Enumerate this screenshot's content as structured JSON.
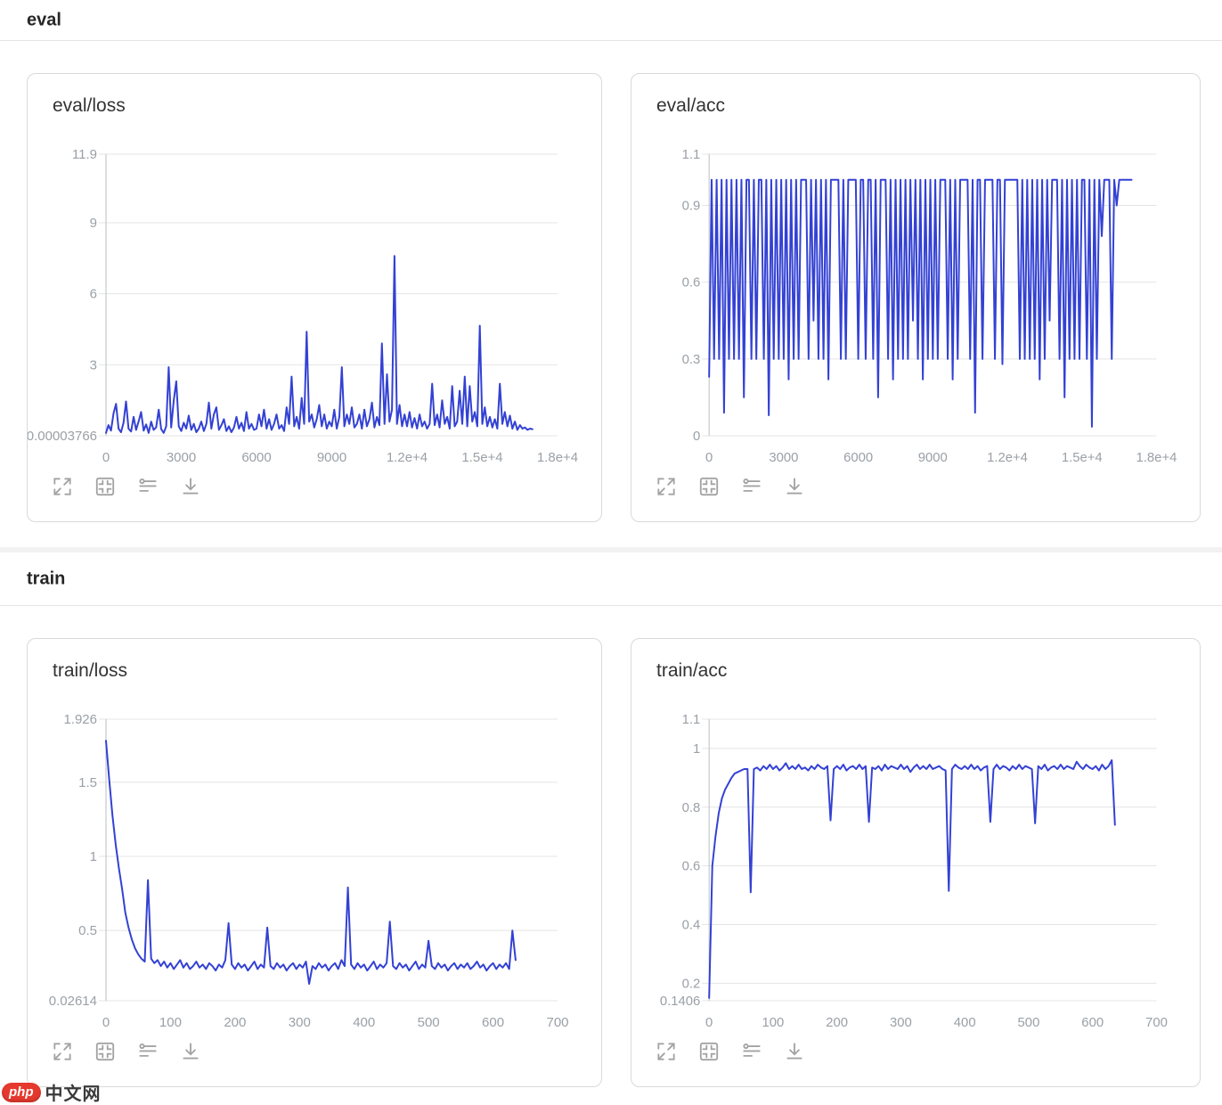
{
  "sections": {
    "eval_title": "eval",
    "train_title": "train"
  },
  "toolbar": {
    "icons": [
      "fullscreen",
      "restore-size",
      "filter",
      "download"
    ]
  },
  "watermark": {
    "badge": "php",
    "text": "中文网",
    "badge_color": "#e6392e",
    "text_color": "#3a3a3a"
  },
  "colors": {
    "line": "#3341d4",
    "grid": "#e4e4e4",
    "axis": "#b9bfc6",
    "tick_label": "#9aa0a6",
    "card_border": "#d9d9d9",
    "title": "#333333"
  },
  "chart_data": [
    {
      "type": "line",
      "title": "eval/loss",
      "section": "eval",
      "line_color": "#3341d4",
      "legend": [],
      "grid": true,
      "xlim": [
        0,
        18000
      ],
      "ylim": [
        3.766e-05,
        11.9
      ],
      "x_start": 0,
      "x_step": 100,
      "yticks": [
        {
          "v": 11.9,
          "label": "11.9"
        },
        {
          "v": 9,
          "label": "9"
        },
        {
          "v": 6,
          "label": "6"
        },
        {
          "v": 3,
          "label": "3"
        },
        {
          "v": 3.766e-05,
          "label": "0.00003766"
        }
      ],
      "xticks": [
        {
          "v": 0,
          "label": "0"
        },
        {
          "v": 3000,
          "label": "3000"
        },
        {
          "v": 6000,
          "label": "6000"
        },
        {
          "v": 9000,
          "label": "9000"
        },
        {
          "v": 12000,
          "label": "1.2e+4"
        },
        {
          "v": 15000,
          "label": "1.5e+4"
        },
        {
          "v": 18000,
          "label": "1.8e+4"
        }
      ],
      "values": [
        0.12,
        0.45,
        0.22,
        0.95,
        1.35,
        0.3,
        0.15,
        0.55,
        1.45,
        0.3,
        0.18,
        0.8,
        0.25,
        0.6,
        1.0,
        0.22,
        0.48,
        0.12,
        0.6,
        0.25,
        0.35,
        1.1,
        0.28,
        0.12,
        0.4,
        2.9,
        0.35,
        1.5,
        2.3,
        0.4,
        0.2,
        0.55,
        0.3,
        0.85,
        0.25,
        0.5,
        0.15,
        0.3,
        0.6,
        0.2,
        0.5,
        1.4,
        0.3,
        0.9,
        1.2,
        0.25,
        0.45,
        0.7,
        0.2,
        0.4,
        0.15,
        0.35,
        0.8,
        0.3,
        0.55,
        0.2,
        1.0,
        0.3,
        0.5,
        0.25,
        0.3,
        0.9,
        0.4,
        1.1,
        0.3,
        0.7,
        0.25,
        0.5,
        0.9,
        0.3,
        0.45,
        0.2,
        1.2,
        0.5,
        2.5,
        0.4,
        0.8,
        0.3,
        1.6,
        0.5,
        4.4,
        0.6,
        0.9,
        0.35,
        0.7,
        1.3,
        0.4,
        0.9,
        0.3,
        0.6,
        0.4,
        1.1,
        0.3,
        0.8,
        2.9,
        0.4,
        0.9,
        0.5,
        1.2,
        0.35,
        0.5,
        0.9,
        0.3,
        1.1,
        0.4,
        0.7,
        1.4,
        0.35,
        0.8,
        0.45,
        3.9,
        0.5,
        2.6,
        0.6,
        1.1,
        7.6,
        0.5,
        1.3,
        0.4,
        0.9,
        0.4,
        1.0,
        0.35,
        0.75,
        0.3,
        0.9,
        0.4,
        0.6,
        0.3,
        0.5,
        2.2,
        0.45,
        0.9,
        0.35,
        1.5,
        0.5,
        0.8,
        0.3,
        2.1,
        0.4,
        0.6,
        1.9,
        0.5,
        2.5,
        0.4,
        2.1,
        0.6,
        1.0,
        0.4,
        4.65,
        0.5,
        1.2,
        0.4,
        0.8,
        0.35,
        0.7,
        0.3,
        2.2,
        0.5,
        1.0,
        0.4,
        0.85,
        0.3,
        0.6,
        0.25,
        0.45,
        0.3,
        0.35,
        0.25,
        0.3,
        0.28
      ]
    },
    {
      "type": "line",
      "title": "eval/acc",
      "section": "eval",
      "line_color": "#3341d4",
      "legend": [],
      "grid": true,
      "xlim": [
        0,
        18000
      ],
      "ylim": [
        0,
        1.1
      ],
      "x_start": 0,
      "x_step": 100,
      "yticks": [
        {
          "v": 1.1,
          "label": "1.1"
        },
        {
          "v": 0.9,
          "label": "0.9"
        },
        {
          "v": 0.6,
          "label": "0.6"
        },
        {
          "v": 0.3,
          "label": "0.3"
        },
        {
          "v": 0,
          "label": "0"
        }
      ],
      "xticks": [
        {
          "v": 0,
          "label": "0"
        },
        {
          "v": 3000,
          "label": "3000"
        },
        {
          "v": 6000,
          "label": "6000"
        },
        {
          "v": 9000,
          "label": "9000"
        },
        {
          "v": 12000,
          "label": "1.2e+4"
        },
        {
          "v": 15000,
          "label": "1.5e+4"
        },
        {
          "v": 18000,
          "label": "1.8e+4"
        }
      ],
      "values": [
        0.23,
        1.0,
        0.3,
        1.0,
        0.3,
        1.0,
        0.09,
        1.0,
        0.3,
        1.0,
        0.3,
        1.0,
        0.3,
        1.0,
        0.15,
        1.0,
        1.0,
        0.3,
        1.0,
        0.3,
        1.0,
        1.0,
        0.3,
        1.0,
        0.08,
        1.0,
        0.3,
        1.0,
        0.3,
        1.0,
        0.3,
        1.0,
        0.22,
        1.0,
        0.3,
        1.0,
        0.3,
        1.0,
        1.0,
        1.0,
        0.3,
        1.0,
        0.45,
        1.0,
        0.3,
        1.0,
        0.3,
        1.0,
        0.22,
        1.0,
        1.0,
        1.0,
        1.0,
        0.3,
        1.0,
        0.3,
        1.0,
        1.0,
        1.0,
        1.0,
        0.3,
        1.0,
        1.0,
        0.3,
        1.0,
        1.0,
        0.3,
        1.0,
        0.15,
        1.0,
        1.0,
        1.0,
        0.3,
        1.0,
        0.22,
        1.0,
        0.3,
        1.0,
        0.3,
        1.0,
        0.3,
        1.0,
        0.45,
        1.0,
        0.3,
        1.0,
        0.22,
        1.0,
        0.3,
        1.0,
        0.3,
        1.0,
        0.3,
        1.0,
        1.0,
        1.0,
        0.3,
        1.0,
        0.22,
        1.0,
        0.3,
        1.0,
        1.0,
        1.0,
        1.0,
        0.3,
        1.0,
        0.09,
        1.0,
        1.0,
        0.3,
        1.0,
        1.0,
        1.0,
        1.0,
        0.3,
        1.0,
        1.0,
        0.28,
        1.0,
        1.0,
        1.0,
        1.0,
        1.0,
        1.0,
        0.3,
        1.0,
        0.3,
        1.0,
        0.3,
        1.0,
        0.3,
        1.0,
        0.22,
        1.0,
        0.3,
        1.0,
        0.45,
        1.0,
        1.0,
        1.0,
        0.3,
        1.0,
        0.15,
        1.0,
        0.3,
        1.0,
        0.3,
        1.0,
        0.3,
        1.0,
        1.0,
        0.3,
        1.0,
        0.035,
        1.0,
        0.3,
        1.0,
        0.78,
        1.0,
        1.0,
        1.0,
        0.3,
        1.0,
        0.9,
        1.0,
        1.0,
        1.0,
        1.0,
        1.0,
        1.0
      ]
    },
    {
      "type": "line",
      "title": "train/loss",
      "section": "train",
      "line_color": "#3341d4",
      "legend": [],
      "grid": true,
      "xlim": [
        0,
        700
      ],
      "ylim": [
        0.02614,
        1.926
      ],
      "x_start": 0,
      "x_step": 5,
      "yticks": [
        {
          "v": 1.926,
          "label": "1.926"
        },
        {
          "v": 1.5,
          "label": "1.5"
        },
        {
          "v": 1,
          "label": "1"
        },
        {
          "v": 0.5,
          "label": "0.5"
        },
        {
          "v": 0.02614,
          "label": "0.02614"
        }
      ],
      "xticks": [
        {
          "v": 0,
          "label": "0"
        },
        {
          "v": 100,
          "label": "100"
        },
        {
          "v": 200,
          "label": "200"
        },
        {
          "v": 300,
          "label": "300"
        },
        {
          "v": 400,
          "label": "400"
        },
        {
          "v": 500,
          "label": "500"
        },
        {
          "v": 600,
          "label": "600"
        },
        {
          "v": 700,
          "label": "700"
        }
      ],
      "values": [
        1.78,
        1.52,
        1.28,
        1.08,
        0.92,
        0.78,
        0.62,
        0.52,
        0.44,
        0.38,
        0.34,
        0.31,
        0.29,
        0.84,
        0.31,
        0.28,
        0.3,
        0.26,
        0.29,
        0.25,
        0.28,
        0.24,
        0.27,
        0.3,
        0.25,
        0.28,
        0.24,
        0.26,
        0.29,
        0.25,
        0.27,
        0.24,
        0.28,
        0.26,
        0.23,
        0.27,
        0.25,
        0.3,
        0.55,
        0.27,
        0.24,
        0.28,
        0.25,
        0.27,
        0.23,
        0.26,
        0.29,
        0.24,
        0.27,
        0.25,
        0.52,
        0.26,
        0.24,
        0.28,
        0.25,
        0.27,
        0.23,
        0.26,
        0.28,
        0.24,
        0.27,
        0.25,
        0.29,
        0.14,
        0.26,
        0.24,
        0.28,
        0.25,
        0.27,
        0.23,
        0.26,
        0.28,
        0.24,
        0.3,
        0.26,
        0.79,
        0.27,
        0.24,
        0.28,
        0.25,
        0.27,
        0.23,
        0.26,
        0.29,
        0.24,
        0.27,
        0.25,
        0.28,
        0.56,
        0.26,
        0.24,
        0.28,
        0.25,
        0.27,
        0.23,
        0.26,
        0.29,
        0.24,
        0.27,
        0.25,
        0.43,
        0.26,
        0.24,
        0.28,
        0.25,
        0.27,
        0.23,
        0.26,
        0.28,
        0.24,
        0.27,
        0.25,
        0.28,
        0.24,
        0.26,
        0.29,
        0.25,
        0.27,
        0.23,
        0.26,
        0.28,
        0.24,
        0.27,
        0.25,
        0.28,
        0.24,
        0.5,
        0.3
      ]
    },
    {
      "type": "line",
      "title": "train/acc",
      "section": "train",
      "line_color": "#3341d4",
      "legend": [],
      "grid": true,
      "xlim": [
        0,
        700
      ],
      "ylim": [
        0.1406,
        1.1
      ],
      "x_start": 0,
      "x_step": 5,
      "yticks": [
        {
          "v": 1.1,
          "label": "1.1"
        },
        {
          "v": 1,
          "label": "1"
        },
        {
          "v": 0.8,
          "label": "0.8"
        },
        {
          "v": 0.6,
          "label": "0.6"
        },
        {
          "v": 0.4,
          "label": "0.4"
        },
        {
          "v": 0.2,
          "label": "0.2"
        },
        {
          "v": 0.1406,
          "label": "0.1406"
        }
      ],
      "xticks": [
        {
          "v": 0,
          "label": "0"
        },
        {
          "v": 100,
          "label": "100"
        },
        {
          "v": 200,
          "label": "200"
        },
        {
          "v": 300,
          "label": "300"
        },
        {
          "v": 400,
          "label": "400"
        },
        {
          "v": 500,
          "label": "500"
        },
        {
          "v": 600,
          "label": "600"
        },
        {
          "v": 700,
          "label": "700"
        }
      ],
      "values": [
        0.15,
        0.6,
        0.7,
        0.78,
        0.83,
        0.86,
        0.88,
        0.9,
        0.915,
        0.92,
        0.925,
        0.93,
        0.93,
        0.51,
        0.93,
        0.935,
        0.925,
        0.94,
        0.93,
        0.945,
        0.93,
        0.94,
        0.925,
        0.935,
        0.95,
        0.93,
        0.94,
        0.93,
        0.945,
        0.93,
        0.935,
        0.925,
        0.94,
        0.93,
        0.945,
        0.935,
        0.93,
        0.94,
        0.755,
        0.93,
        0.94,
        0.93,
        0.945,
        0.925,
        0.935,
        0.94,
        0.93,
        0.945,
        0.93,
        0.94,
        0.75,
        0.935,
        0.93,
        0.94,
        0.925,
        0.945,
        0.93,
        0.94,
        0.935,
        0.93,
        0.945,
        0.93,
        0.94,
        0.92,
        0.935,
        0.945,
        0.93,
        0.94,
        0.93,
        0.945,
        0.93,
        0.935,
        0.94,
        0.93,
        0.925,
        0.515,
        0.93,
        0.945,
        0.935,
        0.93,
        0.94,
        0.93,
        0.945,
        0.93,
        0.94,
        0.925,
        0.935,
        0.94,
        0.75,
        0.93,
        0.945,
        0.93,
        0.94,
        0.935,
        0.925,
        0.94,
        0.93,
        0.945,
        0.93,
        0.94,
        0.935,
        0.93,
        0.745,
        0.94,
        0.93,
        0.945,
        0.925,
        0.935,
        0.94,
        0.93,
        0.945,
        0.93,
        0.94,
        0.935,
        0.93,
        0.955,
        0.94,
        0.93,
        0.945,
        0.935,
        0.93,
        0.94,
        0.925,
        0.945,
        0.93,
        0.94,
        0.96,
        0.74
      ]
    }
  ]
}
